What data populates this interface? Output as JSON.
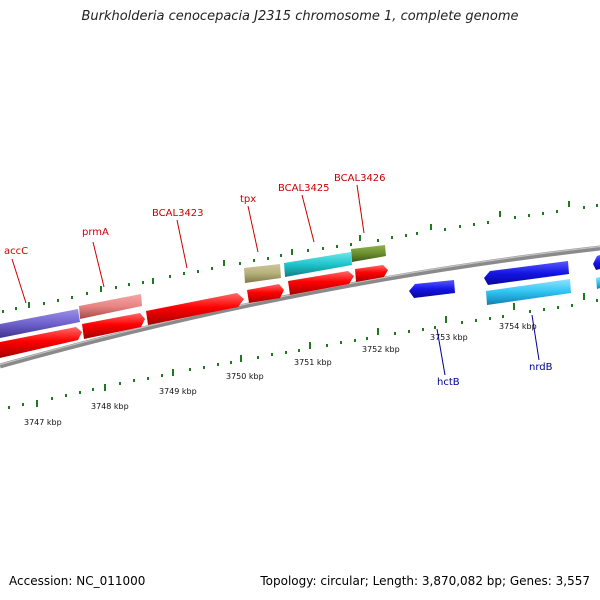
{
  "title": "Burkholderia cenocepacia J2315 chromosome 1, complete genome",
  "footer": {
    "accession": "Accession: NC_011000",
    "topology": "Topology: circular; Length: 3,870,082 bp; Genes: 3,557"
  },
  "colors": {
    "backbone": "#888888",
    "tick": "#1f7a1f",
    "label_top": "#cc0000",
    "label_bottom": "#000099"
  },
  "scale": [
    "3747 kbp",
    "3748 kbp",
    "3749 kbp",
    "3750 kbp",
    "3751 kbp",
    "3752 kbp",
    "3753 kbp",
    "3754 kbp"
  ],
  "gene_labels": {
    "top": [
      "accC",
      "prmA",
      "BCAL3423",
      "tpx",
      "BCAL3425",
      "BCAL3426"
    ],
    "bottom": [
      "hctB",
      "nrdB"
    ]
  }
}
